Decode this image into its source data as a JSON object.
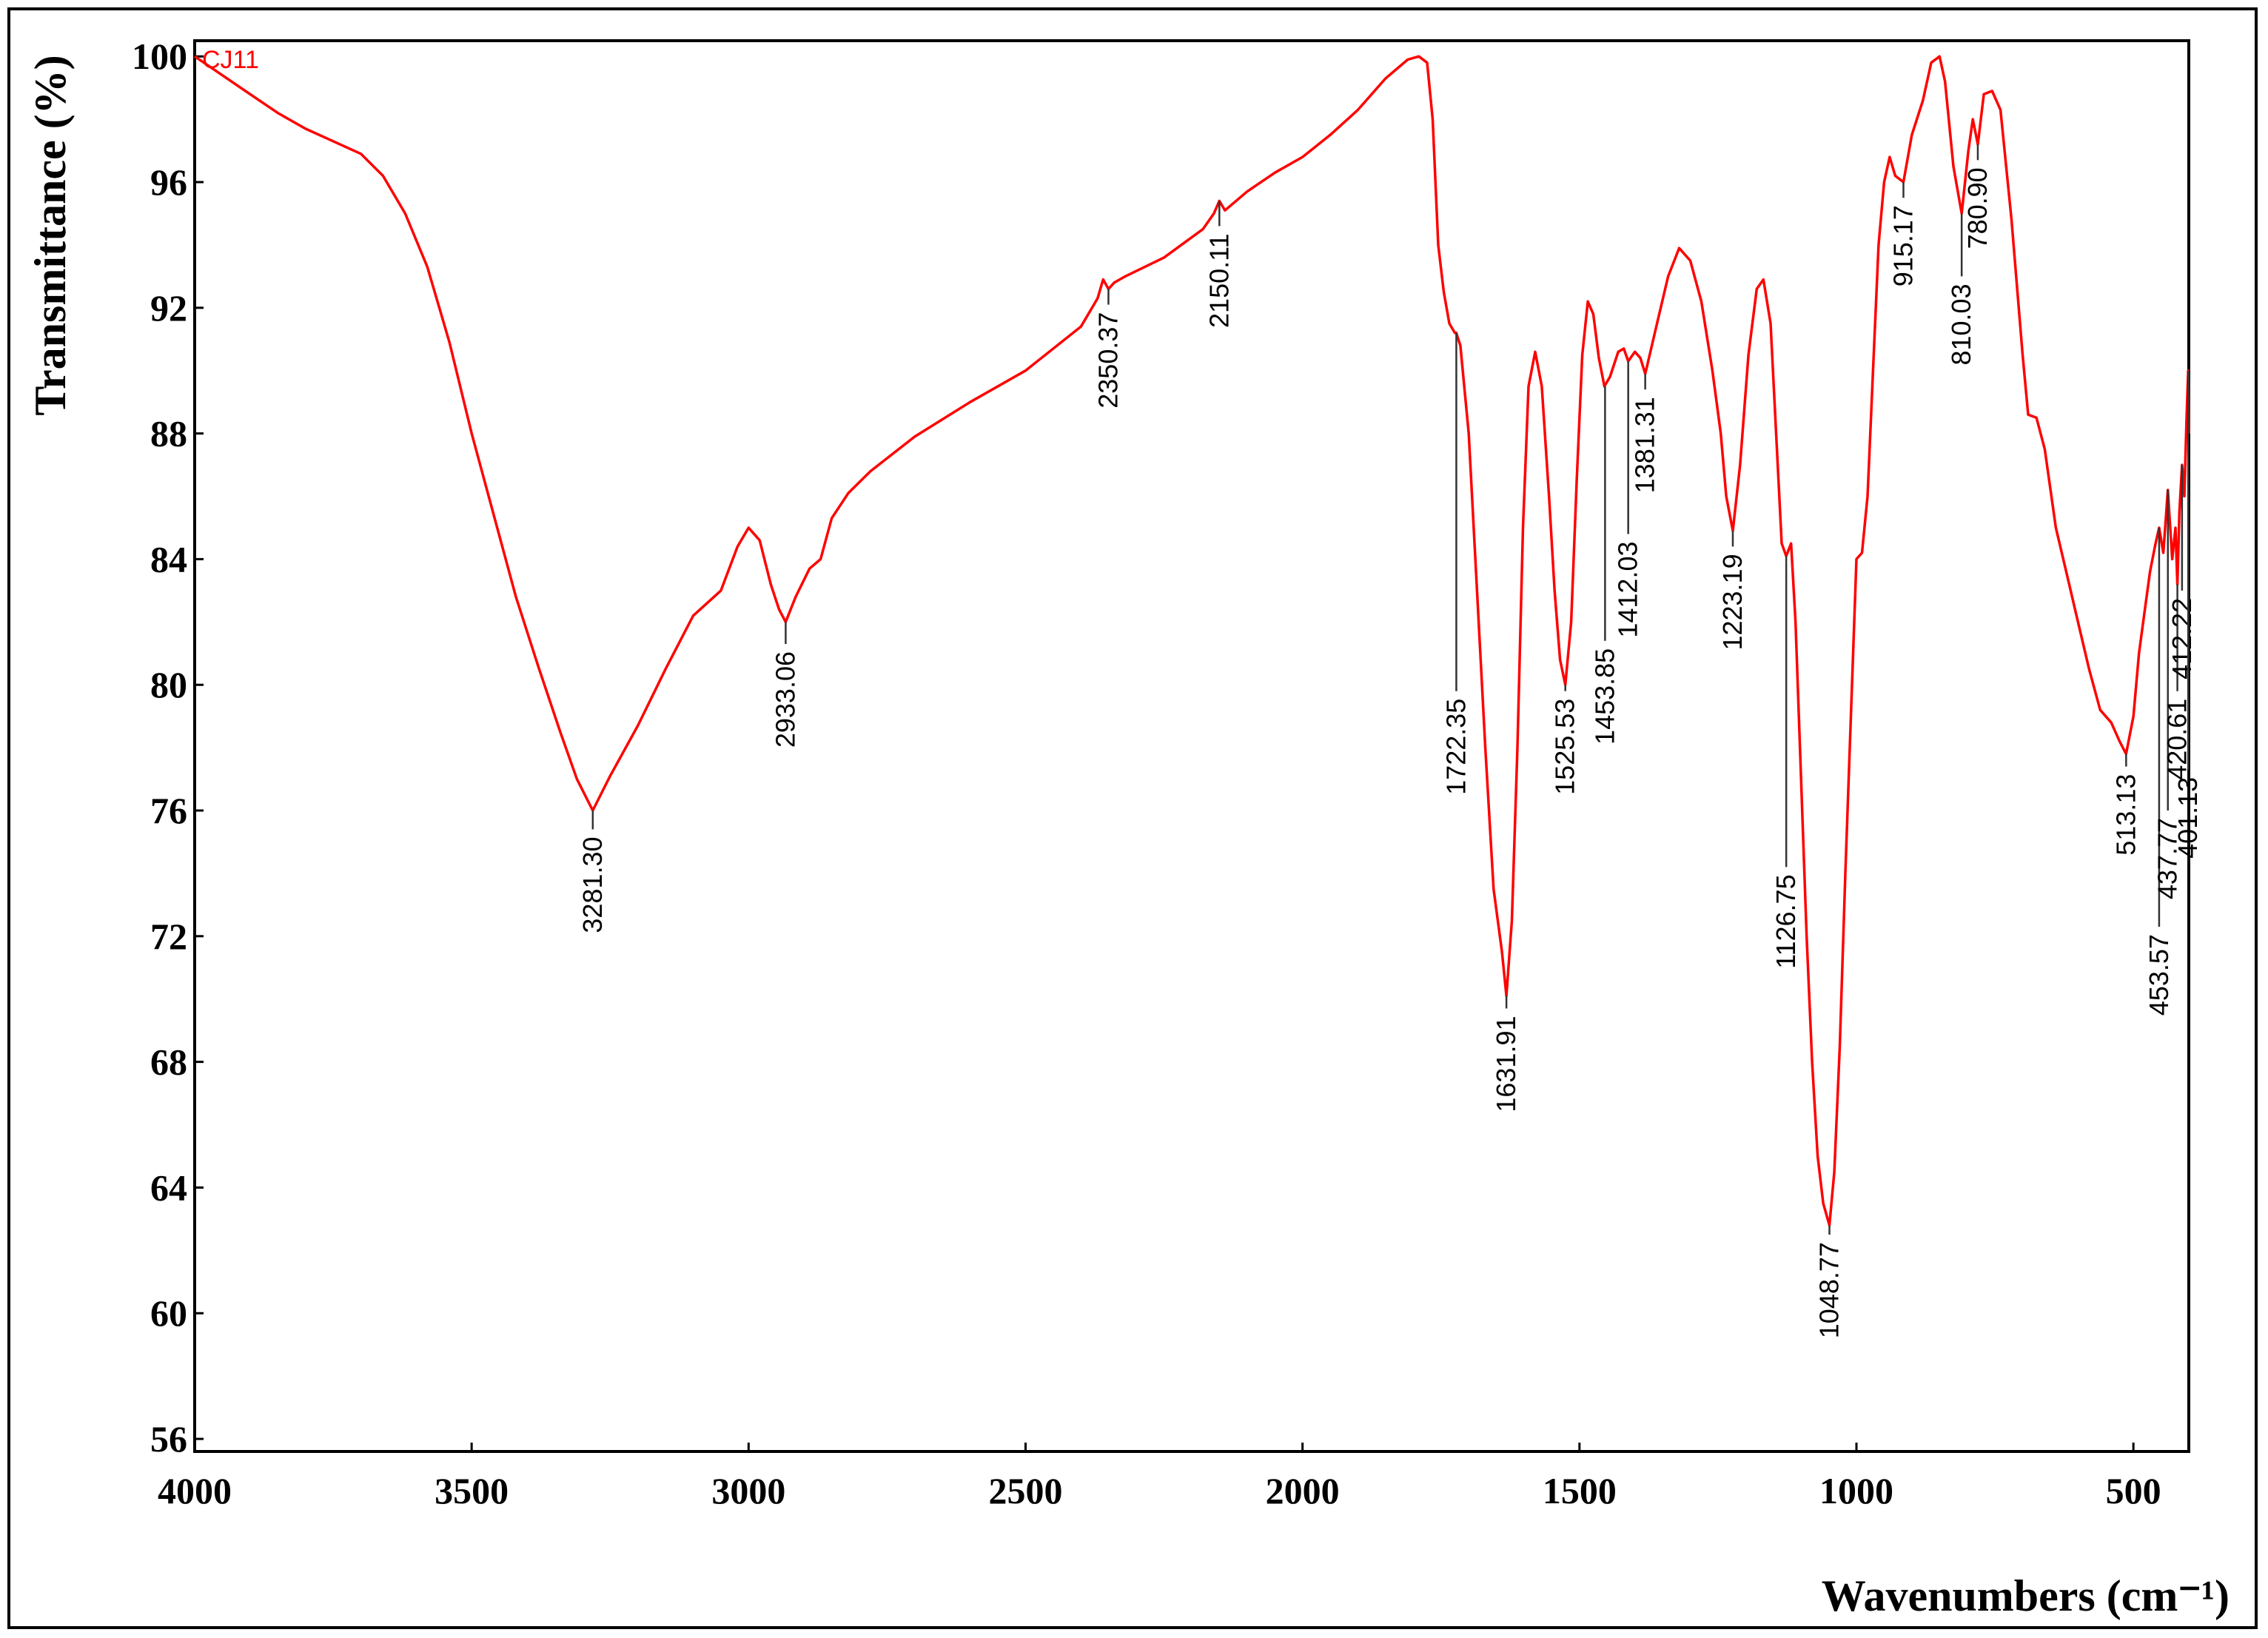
{
  "chart_data": {
    "type": "line",
    "title": "",
    "xlabel": "Wavenumbers (cm⁻¹)",
    "ylabel": "Transmittance (%)",
    "xlim": [
      4000,
      400
    ],
    "ylim": [
      55.6,
      100.5
    ],
    "x_ticks": [
      4000,
      3500,
      3000,
      2500,
      2000,
      1500,
      1000,
      500
    ],
    "x_tick_labels": [
      "4000",
      "3500",
      "3000",
      "2500",
      "2000",
      "1500",
      "1000",
      "500"
    ],
    "y_ticks": [
      100,
      96,
      92,
      88,
      84,
      80,
      76,
      72,
      68,
      64,
      60,
      56
    ],
    "y_tick_labels": [
      "100",
      "96",
      "92",
      "88",
      "84",
      "80",
      "76",
      "72",
      "68",
      "64",
      "60",
      "56"
    ],
    "grid": false,
    "series": [
      {
        "name": "CJ11",
        "color": "#ff0000",
        "points": [
          [
            4000,
            100.0
          ],
          [
            3950,
            99.4
          ],
          [
            3900,
            98.8
          ],
          [
            3850,
            98.2
          ],
          [
            3800,
            97.7
          ],
          [
            3750,
            97.3
          ],
          [
            3700,
            96.9
          ],
          [
            3660,
            96.2
          ],
          [
            3620,
            95.0
          ],
          [
            3580,
            93.3
          ],
          [
            3540,
            90.9
          ],
          [
            3500,
            88.0
          ],
          [
            3460,
            85.4
          ],
          [
            3420,
            82.8
          ],
          [
            3380,
            80.6
          ],
          [
            3340,
            78.5
          ],
          [
            3310,
            77.0
          ],
          [
            3281.3,
            76.0
          ],
          [
            3250,
            77.1
          ],
          [
            3200,
            78.7
          ],
          [
            3150,
            80.5
          ],
          [
            3100,
            82.2
          ],
          [
            3050,
            83.0
          ],
          [
            3020,
            84.4
          ],
          [
            3000,
            85.0
          ],
          [
            2980,
            84.6
          ],
          [
            2960,
            83.2
          ],
          [
            2945,
            82.4
          ],
          [
            2933.06,
            82.0
          ],
          [
            2915,
            82.8
          ],
          [
            2890,
            83.7
          ],
          [
            2870,
            84.0
          ],
          [
            2850,
            85.3
          ],
          [
            2820,
            86.1
          ],
          [
            2780,
            86.8
          ],
          [
            2700,
            87.9
          ],
          [
            2600,
            89.0
          ],
          [
            2500,
            90.0
          ],
          [
            2400,
            91.4
          ],
          [
            2370,
            92.3
          ],
          [
            2360,
            92.9
          ],
          [
            2350.37,
            92.6
          ],
          [
            2340,
            92.8
          ],
          [
            2320,
            93.0
          ],
          [
            2250,
            93.6
          ],
          [
            2180,
            94.5
          ],
          [
            2160,
            95.0
          ],
          [
            2150.11,
            95.4
          ],
          [
            2140,
            95.1
          ],
          [
            2100,
            95.7
          ],
          [
            2050,
            96.3
          ],
          [
            2000,
            96.8
          ],
          [
            1950,
            97.5
          ],
          [
            1900,
            98.3
          ],
          [
            1850,
            99.3
          ],
          [
            1810,
            99.9
          ],
          [
            1790,
            100.0
          ],
          [
            1775,
            99.8
          ],
          [
            1765,
            98.0
          ],
          [
            1755,
            94.0
          ],
          [
            1745,
            92.5
          ],
          [
            1735,
            91.5
          ],
          [
            1725,
            91.2
          ],
          [
            1722.35,
            91.2
          ],
          [
            1715,
            90.8
          ],
          [
            1700,
            88.0
          ],
          [
            1685,
            83.0
          ],
          [
            1670,
            78.0
          ],
          [
            1655,
            73.5
          ],
          [
            1640,
            71.5
          ],
          [
            1631.91,
            70.1
          ],
          [
            1622,
            72.5
          ],
          [
            1612,
            78.0
          ],
          [
            1602,
            85.0
          ],
          [
            1592,
            89.5
          ],
          [
            1580,
            90.6
          ],
          [
            1568,
            89.5
          ],
          [
            1555,
            86.0
          ],
          [
            1545,
            83.0
          ],
          [
            1535,
            80.8
          ],
          [
            1525.53,
            80.0
          ],
          [
            1515,
            82.0
          ],
          [
            1505,
            86.5
          ],
          [
            1495,
            90.5
          ],
          [
            1485,
            92.2
          ],
          [
            1475,
            91.8
          ],
          [
            1465,
            90.4
          ],
          [
            1455,
            89.5
          ],
          [
            1445,
            89.8
          ],
          [
            1430,
            90.6
          ],
          [
            1420,
            90.7
          ],
          [
            1412.03,
            90.3
          ],
          [
            1400,
            90.6
          ],
          [
            1390,
            90.4
          ],
          [
            1381.31,
            89.9
          ],
          [
            1360,
            91.5
          ],
          [
            1340,
            93.0
          ],
          [
            1320,
            93.9
          ],
          [
            1300,
            93.5
          ],
          [
            1280,
            92.2
          ],
          [
            1260,
            90.0
          ],
          [
            1245,
            88.0
          ],
          [
            1235,
            86.0
          ],
          [
            1223.19,
            84.9
          ],
          [
            1210,
            87.0
          ],
          [
            1195,
            90.5
          ],
          [
            1180,
            92.6
          ],
          [
            1168,
            92.9
          ],
          [
            1155,
            91.5
          ],
          [
            1145,
            88.0
          ],
          [
            1135,
            84.5
          ],
          [
            1126.75,
            84.1
          ],
          [
            1118,
            84.5
          ],
          [
            1110,
            82.0
          ],
          [
            1100,
            77.0
          ],
          [
            1090,
            72.0
          ],
          [
            1080,
            68.0
          ],
          [
            1070,
            65.0
          ],
          [
            1060,
            63.5
          ],
          [
            1048.77,
            62.8
          ],
          [
            1040,
            64.5
          ],
          [
            1030,
            68.5
          ],
          [
            1020,
            74.0
          ],
          [
            1010,
            79.0
          ],
          [
            1000,
            84.0
          ],
          [
            990,
            84.2
          ],
          [
            980,
            86.0
          ],
          [
            970,
            90.0
          ],
          [
            960,
            94.0
          ],
          [
            950,
            96.0
          ],
          [
            940,
            96.8
          ],
          [
            930,
            96.2
          ],
          [
            915.17,
            96.0
          ],
          [
            900,
            97.5
          ],
          [
            880,
            98.6
          ],
          [
            865,
            99.8
          ],
          [
            850,
            100.0
          ],
          [
            840,
            99.2
          ],
          [
            825,
            96.5
          ],
          [
            810.03,
            95.0
          ],
          [
            798,
            97.0
          ],
          [
            790,
            98.0
          ],
          [
            780.9,
            97.2
          ],
          [
            770,
            98.8
          ],
          [
            755,
            98.9
          ],
          [
            740,
            98.3
          ],
          [
            720,
            94.8
          ],
          [
            700,
            90.5
          ],
          [
            690,
            88.6
          ],
          [
            675,
            88.5
          ],
          [
            660,
            87.5
          ],
          [
            640,
            85.0
          ],
          [
            620,
            83.5
          ],
          [
            600,
            82.0
          ],
          [
            580,
            80.5
          ],
          [
            560,
            79.2
          ],
          [
            540,
            78.8
          ],
          [
            525,
            78.2
          ],
          [
            513.13,
            77.8
          ],
          [
            500,
            79.0
          ],
          [
            490,
            81.0
          ],
          [
            480,
            82.3
          ],
          [
            470,
            83.6
          ],
          [
            460,
            84.5
          ],
          [
            453.57,
            85.0
          ],
          [
            446,
            84.2
          ],
          [
            437.77,
            86.2
          ],
          [
            430,
            84.0
          ],
          [
            424,
            85.0
          ],
          [
            420.61,
            83.2
          ],
          [
            417,
            85.5
          ],
          [
            412.22,
            87.0
          ],
          [
            408,
            86.0
          ],
          [
            404,
            88.5
          ],
          [
            401.13,
            90.0
          ],
          [
            400,
            88.0
          ]
        ]
      }
    ],
    "annotations": [
      {
        "label": "3281.30",
        "x": 3281.3,
        "y": 76.0,
        "y_end": 75.4
      },
      {
        "label": "2933.06",
        "x": 2933.06,
        "y": 82.0,
        "y_end": 81.3
      },
      {
        "label": "2350.37",
        "x": 2350.37,
        "y": 92.6,
        "y_end": 92.1
      },
      {
        "label": "2150.11",
        "x": 2150.11,
        "y": 95.4,
        "y_end": 94.6
      },
      {
        "label": "1722.35",
        "x": 1722.35,
        "y": 91.2,
        "y_end": 79.8
      },
      {
        "label": "1631.91",
        "x": 1631.91,
        "y": 70.1,
        "y_end": 69.7
      },
      {
        "label": "1525.53",
        "x": 1525.53,
        "y": 80.0,
        "y_end": 79.8
      },
      {
        "label": "1453.85",
        "x": 1453.85,
        "y": 89.5,
        "y_end": 81.4
      },
      {
        "label": "1412.03",
        "x": 1412.03,
        "y": 90.3,
        "y_end": 84.8
      },
      {
        "label": "1381.31",
        "x": 1381.31,
        "y": 89.9,
        "y_end": 89.4
      },
      {
        "label": "1223.19",
        "x": 1223.19,
        "y": 84.9,
        "y_end": 84.4
      },
      {
        "label": "1126.75",
        "x": 1126.75,
        "y": 84.1,
        "y_end": 74.2
      },
      {
        "label": "1048.77",
        "x": 1048.77,
        "y": 62.8,
        "y_end": 62.5
      },
      {
        "label": "915.17",
        "x": 915.17,
        "y": 96.0,
        "y_end": 95.5
      },
      {
        "label": "810.03",
        "x": 810.03,
        "y": 95.0,
        "y_end": 93.0
      },
      {
        "label": "780.90",
        "x": 780.9,
        "y": 97.2,
        "y_end": 96.7
      },
      {
        "label": "513.13",
        "x": 513.13,
        "y": 77.8,
        "y_end": 77.4
      },
      {
        "label": "453.57",
        "x": 453.57,
        "y": 85.0,
        "y_end": 72.3
      },
      {
        "label": "437.77",
        "x": 437.77,
        "y": 86.2,
        "y_end": 76.0
      },
      {
        "label": "420.61",
        "x": 420.61,
        "y": 83.2,
        "y_end": 79.8
      },
      {
        "label": "412.22",
        "x": 412.22,
        "y": 87.0,
        "y_end": 83.0
      },
      {
        "label": "401.13",
        "x": 401.13,
        "y": 90.0,
        "y_end": 77.3
      }
    ]
  }
}
